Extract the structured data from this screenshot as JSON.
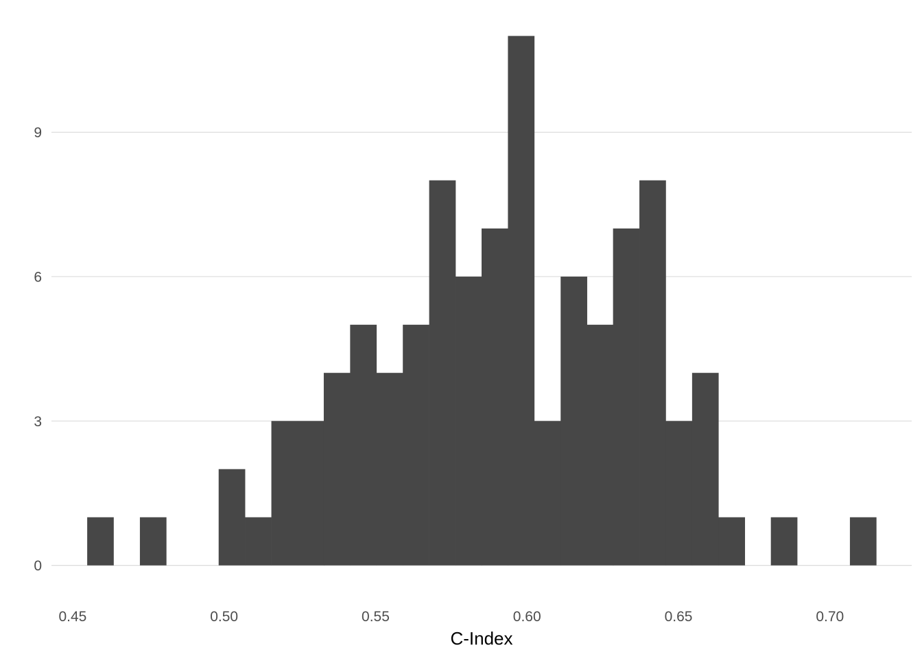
{
  "chart_data": {
    "type": "bar",
    "subtype": "histogram",
    "title": "",
    "xlabel": "C-Index",
    "ylabel": "",
    "xlim": [
      0.443,
      0.727
    ],
    "ylim": [
      -0.49,
      11.49
    ],
    "bin_width": 0.00868,
    "x_ticks": [
      {
        "value": 0.45,
        "label": "0.45"
      },
      {
        "value": 0.5,
        "label": "0.50"
      },
      {
        "value": 0.55,
        "label": "0.55"
      },
      {
        "value": 0.6,
        "label": "0.60"
      },
      {
        "value": 0.65,
        "label": "0.65"
      },
      {
        "value": 0.7,
        "label": "0.70"
      }
    ],
    "y_ticks": [
      {
        "value": 0,
        "label": "0"
      },
      {
        "value": 3,
        "label": "3"
      },
      {
        "value": 6,
        "label": "6"
      },
      {
        "value": 9,
        "label": "9"
      }
    ],
    "bins": [
      {
        "x0": 0.4548,
        "count": 1
      },
      {
        "x0": 0.4635,
        "count": 0
      },
      {
        "x0": 0.4722,
        "count": 1
      },
      {
        "x0": 0.4808,
        "count": 0
      },
      {
        "x0": 0.4895,
        "count": 0
      },
      {
        "x0": 0.4982,
        "count": 2
      },
      {
        "x0": 0.5069,
        "count": 1
      },
      {
        "x0": 0.5156,
        "count": 3
      },
      {
        "x0": 0.5243,
        "count": 3
      },
      {
        "x0": 0.5329,
        "count": 4
      },
      {
        "x0": 0.5416,
        "count": 5
      },
      {
        "x0": 0.5503,
        "count": 4
      },
      {
        "x0": 0.559,
        "count": 5
      },
      {
        "x0": 0.5677,
        "count": 8
      },
      {
        "x0": 0.5764,
        "count": 6
      },
      {
        "x0": 0.585,
        "count": 7
      },
      {
        "x0": 0.5937,
        "count": 11
      },
      {
        "x0": 0.6024,
        "count": 3
      },
      {
        "x0": 0.6111,
        "count": 6
      },
      {
        "x0": 0.6198,
        "count": 5
      },
      {
        "x0": 0.6284,
        "count": 7
      },
      {
        "x0": 0.6371,
        "count": 8
      },
      {
        "x0": 0.6458,
        "count": 3
      },
      {
        "x0": 0.6545,
        "count": 4
      },
      {
        "x0": 0.6632,
        "count": 1
      },
      {
        "x0": 0.6719,
        "count": 0
      },
      {
        "x0": 0.6805,
        "count": 1
      },
      {
        "x0": 0.6892,
        "count": 0
      },
      {
        "x0": 0.6979,
        "count": 0
      },
      {
        "x0": 0.7066,
        "count": 1
      }
    ],
    "grid": {
      "horizontal": true,
      "vertical": false
    },
    "legend": "none",
    "colors": {
      "bar": "#474747",
      "grid": "#dcdcdc",
      "tick_text": "#4d4d4d",
      "axis_title": "#000000",
      "background": "#ffffff"
    }
  }
}
